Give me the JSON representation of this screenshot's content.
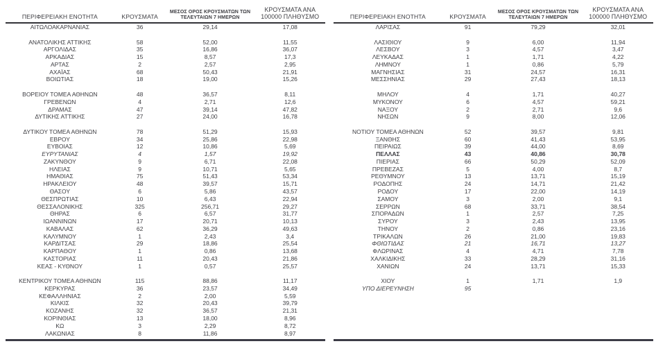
{
  "colors": {
    "text": "#3d3d42",
    "header_rule": "#333338",
    "bottom_rule": "#3c3c46",
    "background": "#ffffff"
  },
  "tables": [
    {
      "headers": {
        "region": "ΠΕΡΙΦΕΡΕΙΑΚΗ ΕΝΟΤΗΤΑ",
        "cases": "ΚΡΟΥΣΜΑΤΑ",
        "avg7": "ΜΕΣΟΣ ΟΡΟΣ ΚΡΟΥΣΜΑΤΩΝ ΤΩΝ ΤΕΛΕΥΤΑΙΩΝ 7 ΗΜΕΡΩΝ",
        "per100k": "ΚΡΟΥΣΜΑΤΑ ΑΝΑ 100000 ΠΛΗΘΥΣΜΟ"
      },
      "groups": [
        [
          {
            "region": "ΑΙΤΩΛΟΑΚΑΡΝΑΝΙΑΣ",
            "cases": "36",
            "avg7": "29,14",
            "per100k": "17,08"
          }
        ],
        [
          {
            "region": "ΑΝΑΤΟΛΙΚΗΣ ΑΤΤΙΚΗΣ",
            "cases": "58",
            "avg7": "52,00",
            "per100k": "11,55"
          },
          {
            "region": "ΑΡΓΟΛΙΔΑΣ",
            "cases": "35",
            "avg7": "16,86",
            "per100k": "36,07"
          },
          {
            "region": "ΑΡΚΑΔΙΑΣ",
            "cases": "15",
            "avg7": "8,57",
            "per100k": "17,3"
          },
          {
            "region": "ΑΡΤΑΣ",
            "cases": "2",
            "avg7": "2,57",
            "per100k": "2,95"
          },
          {
            "region": "ΑΧΑΪΑΣ",
            "cases": "68",
            "avg7": "50,43",
            "per100k": "21,91"
          },
          {
            "region": "ΒΟΙΩΤΙΑΣ",
            "cases": "18",
            "avg7": "19,00",
            "per100k": "15,26"
          }
        ],
        [
          {
            "region": "ΒΟΡΕΙΟΥ ΤΟΜΕΑ ΑΘΗΝΩΝ",
            "cases": "48",
            "avg7": "36,57",
            "per100k": "8,11"
          },
          {
            "region": "ΓΡΕΒΕΝΩΝ",
            "cases": "4",
            "avg7": "2,71",
            "per100k": "12,6"
          },
          {
            "region": "ΔΡΑΜΑΣ",
            "cases": "47",
            "avg7": "39,14",
            "per100k": "47,82"
          },
          {
            "region": "ΔΥΤΙΚΗΣ ΑΤΤΙΚΗΣ",
            "cases": "27",
            "avg7": "24,00",
            "per100k": "16,78"
          }
        ],
        [
          {
            "region": "ΔΥΤΙΚΟΥ ΤΟΜΕΑ ΑΘΗΝΩΝ",
            "cases": "78",
            "avg7": "51,29",
            "per100k": "15,93"
          },
          {
            "region": "ΕΒΡΟΥ",
            "cases": "34",
            "avg7": "25,86",
            "per100k": "22,98"
          },
          {
            "region": "ΕΥΒΟΙΑΣ",
            "cases": "12",
            "avg7": "10,86",
            "per100k": "5,69"
          },
          {
            "region": "ΕΥΡΥΤΑΝΙΑΣ",
            "cases": "4",
            "avg7": "1,57",
            "per100k": "19,92",
            "style": "italic"
          },
          {
            "region": "ΖΑΚΥΝΘΟΥ",
            "cases": "9",
            "avg7": "6,71",
            "per100k": "22,08"
          },
          {
            "region": "ΗΛΕΙΑΣ",
            "cases": "9",
            "avg7": "10,71",
            "per100k": "5,65"
          },
          {
            "region": "ΗΜΑΘΙΑΣ",
            "cases": "75",
            "avg7": "51,43",
            "per100k": "53,34"
          },
          {
            "region": "ΗΡΑΚΛΕΙΟΥ",
            "cases": "48",
            "avg7": "39,57",
            "per100k": "15,71"
          },
          {
            "region": "ΘΑΣΟΥ",
            "cases": "6",
            "avg7": "5,86",
            "per100k": "43,57"
          },
          {
            "region": "ΘΕΣΠΡΩΤΙΑΣ",
            "cases": "10",
            "avg7": "6,43",
            "per100k": "22,94"
          },
          {
            "region": "ΘΕΣΣΑΛΟΝΙΚΗΣ",
            "cases": "325",
            "avg7": "256,71",
            "per100k": "29,27"
          },
          {
            "region": "ΘΗΡΑΣ",
            "cases": "6",
            "avg7": "6,57",
            "per100k": "31,77"
          },
          {
            "region": "ΙΩΑΝΝΙΝΩΝ",
            "cases": "17",
            "avg7": "20,71",
            "per100k": "10,13"
          },
          {
            "region": "ΚΑΒΑΛΑΣ",
            "cases": "62",
            "avg7": "36,29",
            "per100k": "49,63"
          },
          {
            "region": "ΚΑΛΥΜΝΟΥ",
            "cases": "1",
            "avg7": "2,43",
            "per100k": "3,4"
          },
          {
            "region": "ΚΑΡΔΙΤΣΑΣ",
            "cases": "29",
            "avg7": "18,86",
            "per100k": "25,54"
          },
          {
            "region": "ΚΑΡΠΑΘΟΥ",
            "cases": "1",
            "avg7": "0,86",
            "per100k": "13,68"
          },
          {
            "region": "ΚΑΣΤΟΡΙΑΣ",
            "cases": "11",
            "avg7": "20,43",
            "per100k": "21,86"
          },
          {
            "region": "ΚΕΑΣ - ΚΥΘΝΟΥ",
            "cases": "1",
            "avg7": "0,57",
            "per100k": "25,57"
          }
        ],
        [
          {
            "region": "ΚΕΝΤΡΙΚΟΥ ΤΟΜΕΑ ΑΘΗΝΩΝ",
            "cases": "115",
            "avg7": "88,86",
            "per100k": "11,17"
          },
          {
            "region": "ΚΕΡΚΥΡΑΣ",
            "cases": "36",
            "avg7": "23,57",
            "per100k": "34,49"
          },
          {
            "region": "ΚΕΦΑΛΛΗΝΙΑΣ",
            "cases": "2",
            "avg7": "2,00",
            "per100k": "5,59"
          },
          {
            "region": "ΚΙΛΚΙΣ",
            "cases": "32",
            "avg7": "20,43",
            "per100k": "39,79"
          },
          {
            "region": "ΚΟΖΑΝΗΣ",
            "cases": "32",
            "avg7": "36,57",
            "per100k": "21,31"
          },
          {
            "region": "ΚΟΡΙΝΘΙΑΣ",
            "cases": "13",
            "avg7": "18,00",
            "per100k": "8,96"
          },
          {
            "region": "ΚΩ",
            "cases": "3",
            "avg7": "2,29",
            "per100k": "8,72"
          },
          {
            "region": "ΛΑΚΩΝΙΑΣ",
            "cases": "8",
            "avg7": "11,86",
            "per100k": "8,97"
          }
        ]
      ]
    },
    {
      "headers": {
        "region": "ΠΕΡΙΦΕΡΕΙΑΚΗ ΕΝΟΤΗΤΑ",
        "cases": "ΚΡΟΥΣΜΑΤΑ",
        "avg7": "ΜΕΣΟΣ ΟΡΟΣ ΚΡΟΥΣΜΑΤΩΝ ΤΩΝ ΤΕΛΕΥΤΑΙΩΝ 7 ΗΜΕΡΩΝ",
        "per100k": "ΚΡΟΥΣΜΑΤΑ ΑΝΑ 100000 ΠΛΗΘΥΣΜΟ"
      },
      "groups": [
        [
          {
            "region": "ΛΑΡΙΣΑΣ",
            "cases": "91",
            "avg7": "79,29",
            "per100k": "32,01"
          }
        ],
        [
          {
            "region": "ΛΑΣΙΘΙΟΥ",
            "cases": "9",
            "avg7": "6,00",
            "per100k": "11,94"
          },
          {
            "region": "ΛΕΣΒΟΥ",
            "cases": "3",
            "avg7": "4,57",
            "per100k": "3,47"
          },
          {
            "region": "ΛΕΥΚΑΔΑΣ",
            "cases": "1",
            "avg7": "1,71",
            "per100k": "4,22"
          },
          {
            "region": "ΛΗΜΝΟΥ",
            "cases": "1",
            "avg7": "0,86",
            "per100k": "5,79"
          },
          {
            "region": "ΜΑΓΝΗΣΙΑΣ",
            "cases": "31",
            "avg7": "24,57",
            "per100k": "16,31"
          },
          {
            "region": "ΜΕΣΣΗΝΙΑΣ",
            "cases": "29",
            "avg7": "27,43",
            "per100k": "18,13"
          }
        ],
        [
          {
            "region": "ΜΗΛΟΥ",
            "cases": "4",
            "avg7": "1,71",
            "per100k": "40,27"
          },
          {
            "region": "ΜΥΚΟΝΟΥ",
            "cases": "6",
            "avg7": "4,57",
            "per100k": "59,21"
          },
          {
            "region": "ΝΑΞΟΥ",
            "cases": "2",
            "avg7": "2,71",
            "per100k": "9,6"
          },
          {
            "region": "ΝΗΣΩΝ",
            "cases": "9",
            "avg7": "8,00",
            "per100k": "12,06"
          }
        ],
        [
          {
            "region": "ΝΟΤΙΟΥ ΤΟΜΕΑ ΑΘΗΝΩΝ",
            "cases": "52",
            "avg7": "39,57",
            "per100k": "9,81"
          },
          {
            "region": "ΞΑΝΘΗΣ",
            "cases": "60",
            "avg7": "41,43",
            "per100k": "53,95"
          },
          {
            "region": "ΠΕΙΡΑΙΩΣ",
            "cases": "39",
            "avg7": "44,00",
            "per100k": "8,69"
          },
          {
            "region": "ΠΕΛΛΑΣ",
            "cases": "43",
            "avg7": "40,86",
            "per100k": "30,78",
            "style": "bold"
          },
          {
            "region": "ΠΙΕΡΙΑΣ",
            "cases": "66",
            "avg7": "50,29",
            "per100k": "52,09"
          },
          {
            "region": "ΠΡΕΒΕΖΑΣ",
            "cases": "5",
            "avg7": "4,00",
            "per100k": "8,7"
          },
          {
            "region": "ΡΕΘΥΜΝΟΥ",
            "cases": "13",
            "avg7": "13,71",
            "per100k": "15,19"
          },
          {
            "region": "ΡΟΔΟΠΗΣ",
            "cases": "24",
            "avg7": "14,71",
            "per100k": "21,42"
          },
          {
            "region": "ΡΟΔΟΥ",
            "cases": "17",
            "avg7": "22,00",
            "per100k": "14,19"
          },
          {
            "region": "ΣΑΜΟΥ",
            "cases": "3",
            "avg7": "2,00",
            "per100k": "9,1"
          },
          {
            "region": "ΣΕΡΡΩΝ",
            "cases": "68",
            "avg7": "33,71",
            "per100k": "38,54"
          },
          {
            "region": "ΣΠΟΡΑΔΩΝ",
            "cases": "1",
            "avg7": "2,57",
            "per100k": "7,25"
          },
          {
            "region": "ΣΥΡΟΥ",
            "cases": "3",
            "avg7": "2,43",
            "per100k": "13,95"
          },
          {
            "region": "ΤΗΝΟΥ",
            "cases": "2",
            "avg7": "0,86",
            "per100k": "23,16"
          },
          {
            "region": "ΤΡΙΚΑΛΩΝ",
            "cases": "26",
            "avg7": "21,00",
            "per100k": "19,83"
          },
          {
            "region": "ΦΘΙΩΤΙΔΑΣ",
            "cases": "21",
            "avg7": "16,71",
            "per100k": "13,27",
            "style": "italic"
          },
          {
            "region": "ΦΛΩΡΙΝΑΣ",
            "cases": "4",
            "avg7": "4,71",
            "per100k": "7,78"
          },
          {
            "region": "ΧΑΛΚΙΔΙΚΗΣ",
            "cases": "33",
            "avg7": "28,29",
            "per100k": "31,16"
          },
          {
            "region": "ΧΑΝΙΩΝ",
            "cases": "24",
            "avg7": "13,71",
            "per100k": "15,33"
          }
        ],
        [
          {
            "region": "ΧΙΟΥ",
            "cases": "1",
            "avg7": "1,71",
            "per100k": "1,9"
          },
          {
            "region": "ΥΠΟ ΔΙΕΡΕΥΝΗΣΗ",
            "cases": "95",
            "avg7": "",
            "per100k": "",
            "style": "italic"
          }
        ]
      ]
    }
  ]
}
